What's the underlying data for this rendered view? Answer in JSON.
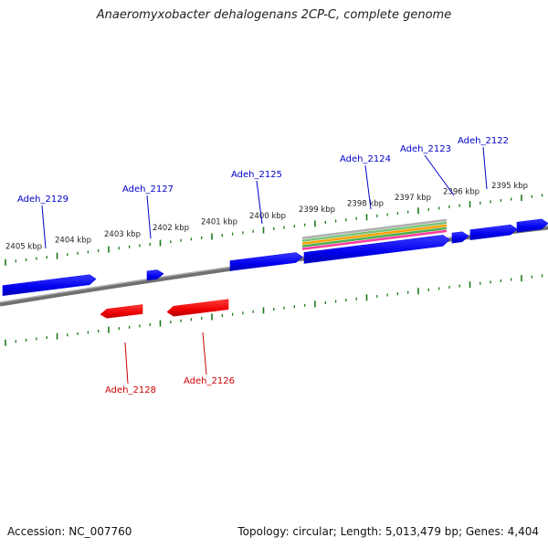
{
  "title": "Anaeromyxobacter dehalogenans 2CP-C, complete genome",
  "accession": "Accession: NC_007760",
  "topology": "Topology: circular; Length: 5,013,479 bp; Genes: 4,404",
  "colors": {
    "forward_gene": "#0000ee",
    "reverse_gene": "#ee0000",
    "backbone": "#888888",
    "ticks": "#1a7a1a",
    "label_forward": "#0000cc",
    "label_reverse": "#cc0000"
  },
  "scale_labels": [
    "2405 kbp",
    "2404 kbp",
    "2403 kbp",
    "2402 kbp",
    "2401 kbp",
    "2400 kbp",
    "2399 kbp",
    "2398 kbp",
    "2397 kbp",
    "2396 kbp",
    "2395 kbp"
  ],
  "genes": [
    {
      "id": "g2129",
      "label": "Adeh_2129",
      "strand": "+"
    },
    {
      "id": "g2128",
      "label": "Adeh_2128",
      "strand": "-"
    },
    {
      "id": "g2127",
      "label": "Adeh_2127",
      "strand": "+"
    },
    {
      "id": "g2126",
      "label": "Adeh_2126",
      "strand": "-"
    },
    {
      "id": "g2125",
      "label": "Adeh_2125",
      "strand": "+"
    },
    {
      "id": "g2124",
      "label": "Adeh_2124",
      "strand": "+"
    },
    {
      "id": "g2123",
      "label": "Adeh_2123",
      "strand": "+"
    },
    {
      "id": "g2122",
      "label": "Adeh_2122",
      "strand": "+"
    }
  ]
}
